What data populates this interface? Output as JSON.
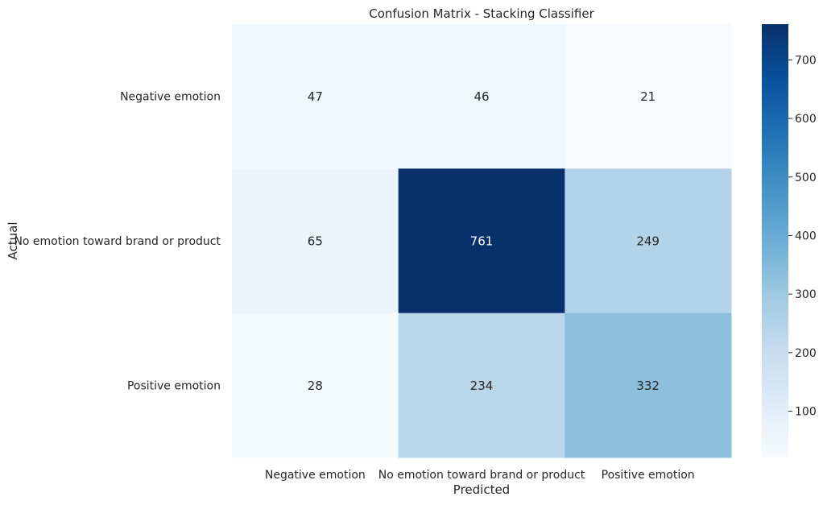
{
  "chart_data": {
    "type": "heatmap",
    "title": "Confusion Matrix - Stacking Classifier",
    "xlabel": "Predicted",
    "ylabel": "Actual",
    "x_categories": [
      "Negative emotion",
      "No emotion toward brand or product",
      "Positive emotion"
    ],
    "y_categories": [
      "Negative emotion",
      "No emotion toward brand or product",
      "Positive emotion"
    ],
    "values": [
      [
        47,
        46,
        21
      ],
      [
        65,
        761,
        249
      ],
      [
        28,
        234,
        332
      ]
    ],
    "colormap": "Blues",
    "colorbar_range": [
      21,
      761
    ],
    "colorbar_ticks": [
      100,
      200,
      300,
      400,
      500,
      600,
      700
    ]
  }
}
